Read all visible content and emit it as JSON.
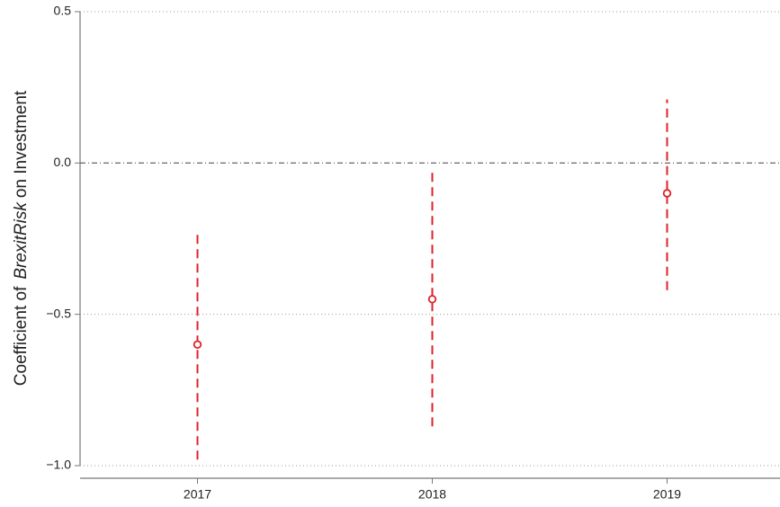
{
  "chart_data": {
    "type": "errorbar",
    "ylabel": [
      "Coefficient of",
      "BrexitRisk",
      "on Investment"
    ],
    "categories": [
      "2017",
      "2018",
      "2019"
    ],
    "values": [
      -0.6,
      -0.45,
      -0.1
    ],
    "lower": [
      -0.98,
      -0.87,
      -0.42
    ],
    "upper": [
      -0.23,
      -0.03,
      0.21
    ],
    "color": "#e0202a",
    "ylim": [
      -1.0,
      0.5
    ],
    "yticks": [
      {
        "value": 0.5,
        "label": "0.5"
      },
      {
        "value": 0,
        "label": "0.0"
      },
      {
        "value": -0.5,
        "label": "−0.5"
      },
      {
        "value": -1.0,
        "label": "−1.0"
      }
    ],
    "reference_line": 0,
    "grid": true
  }
}
